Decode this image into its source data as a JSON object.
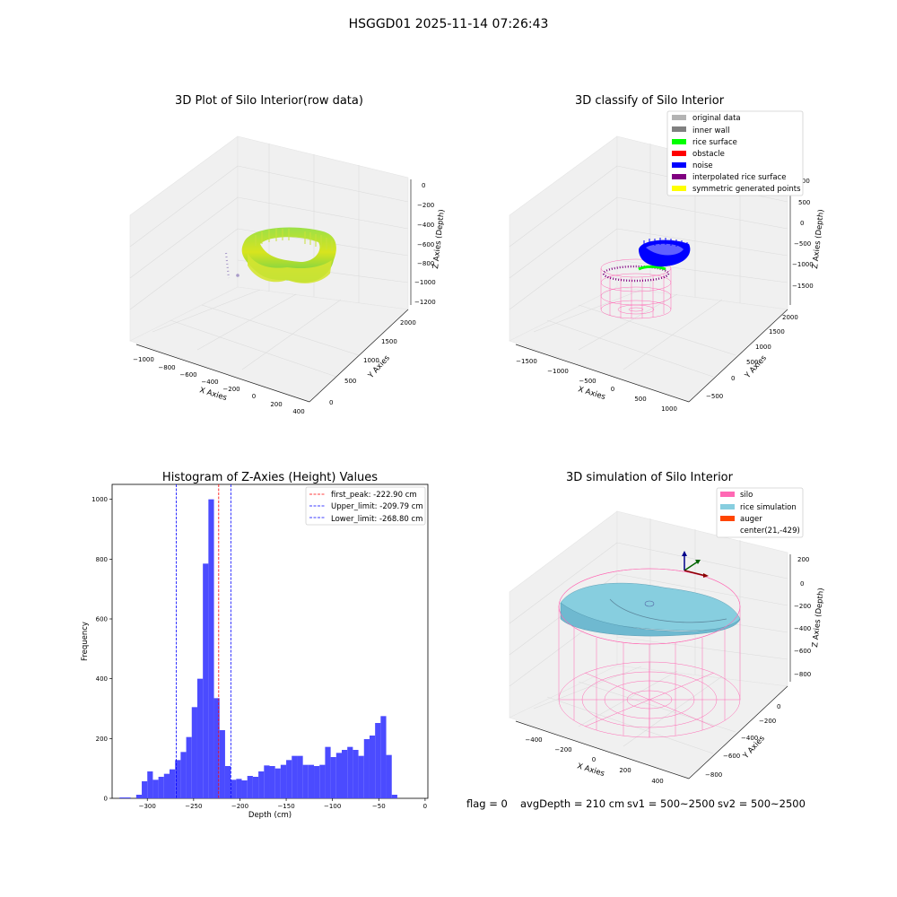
{
  "figure": {
    "suptitle": "HSGGD01 2025-11-14 07:26:43",
    "status": {
      "flag": "flag = 0",
      "avg_depth": "avgDepth = 210 cm",
      "sv1": "sv1 = 500~2500",
      "sv2": "sv2 = 500~2500"
    }
  },
  "colors": {
    "hist_bar": "#4b4bff",
    "first_peak": "#ff0000",
    "limit": "#0000ff",
    "silo": "#ff69b4",
    "rice_sim": "#87cedf",
    "auger": "#ff4500",
    "noise": "#0000ff",
    "interp": "#800080",
    "yellow": "#ffff00",
    "green": "#00ff00",
    "gray": "#b3b3b3",
    "darkgray": "#808080"
  },
  "plots3d": [
    {
      "title": "3D Plot of Silo Interior(row data)",
      "xlabel": "X Axies",
      "ylabel": "Y Axies",
      "zlabel": "Z Axies (Depth)",
      "xticks": [
        "−1000",
        "−800",
        "−600",
        "−400",
        "−200",
        "0",
        "200",
        "400"
      ],
      "yticks": [
        "0",
        "500",
        "1000",
        "1500",
        "2000"
      ],
      "zticks": [
        "0",
        "−200",
        "−400",
        "−600",
        "−800",
        "−1000",
        "−1200"
      ]
    },
    {
      "title": "3D classify of Silo Interior",
      "xlabel": "X Axies",
      "ylabel": "Y Axies",
      "zlabel": "Z Axies (Depth)",
      "xticks": [
        "−1500",
        "−1000",
        "−500",
        "0",
        "500",
        "1000"
      ],
      "yticks": [
        "−500",
        "0",
        "500",
        "1000",
        "1500",
        "2000"
      ],
      "zticks": [
        "1000",
        "500",
        "0",
        "−500",
        "−1000",
        "−1500"
      ],
      "legend": [
        {
          "label": "original data",
          "color": "#b3b3b3"
        },
        {
          "label": "inner wall",
          "color": "#808080"
        },
        {
          "label": "rice surface",
          "color": "#00ff00"
        },
        {
          "label": "obstacle",
          "color": "#ff0000"
        },
        {
          "label": "noise",
          "color": "#0000ff"
        },
        {
          "label": "interpolated rice surface",
          "color": "#800080"
        },
        {
          "label": "symmetric generated points",
          "color": "#ffff00"
        }
      ]
    },
    {
      "title": "3D simulation of Silo Interior",
      "xlabel": "X Axies",
      "ylabel": "Y Axies",
      "zlabel": "Z Axies (Depth)",
      "xticks": [
        "−400",
        "−200",
        "0",
        "200",
        "400"
      ],
      "yticks": [
        "−800",
        "−600",
        "−400",
        "−200",
        "0"
      ],
      "zticks": [
        "200",
        "0",
        "−200",
        "−400",
        "−600",
        "−800"
      ],
      "legend": [
        {
          "label": "silo",
          "color": "#ff69b4"
        },
        {
          "label": "rice simulation",
          "color": "#87cedf"
        },
        {
          "label": "auger",
          "color": "#ff4500"
        },
        {
          "label": "center(21,-429)",
          "color": ""
        }
      ]
    }
  ],
  "chart_data": {
    "type": "bar",
    "title": "Histogram of Z-Axies (Height) Values",
    "xlabel": "Depth (cm)",
    "ylabel": "Frequency",
    "xlim": [
      -338,
      3
    ],
    "ylim": [
      0,
      1050
    ],
    "xticks": [
      -300,
      -250,
      -200,
      -150,
      -100,
      -50,
      0
    ],
    "yticks": [
      0,
      200,
      400,
      600,
      800,
      1000
    ],
    "bin_width": 6,
    "bins_start": [
      -330,
      -324,
      -318,
      -312,
      -306,
      -300,
      -294,
      -288,
      -282,
      -276,
      -270,
      -264,
      -258,
      -252,
      -246,
      -240,
      -234,
      -228,
      -222,
      -216,
      -210,
      -204,
      -198,
      -192,
      -186,
      -180,
      -174,
      -168,
      -162,
      -156,
      -150,
      -144,
      -138,
      -132,
      -126,
      -120,
      -114,
      -108,
      -102,
      -96,
      -90,
      -84,
      -78,
      -72,
      -66,
      -60,
      -54,
      -48,
      -42,
      -36,
      -30,
      -24,
      -18,
      -12,
      -6
    ],
    "counts": [
      3,
      3,
      0,
      12,
      57,
      90,
      62,
      72,
      82,
      97,
      128,
      155,
      205,
      305,
      400,
      785,
      1000,
      335,
      228,
      108,
      62,
      65,
      60,
      75,
      72,
      90,
      110,
      108,
      100,
      112,
      128,
      142,
      142,
      112,
      112,
      108,
      112,
      172,
      138,
      152,
      162,
      172,
      162,
      142,
      198,
      210,
      252,
      275,
      145,
      12,
      0,
      0,
      0,
      0,
      0
    ],
    "lines": [
      {
        "label": "first_peak: -222.90 cm",
        "x": -222.9,
        "color": "#ff0000"
      },
      {
        "label": "Upper_limit: -209.79 cm",
        "x": -209.79,
        "color": "#0000ff"
      },
      {
        "label": "Lower_limit: -268.80 cm",
        "x": -268.8,
        "color": "#0000ff"
      }
    ]
  }
}
